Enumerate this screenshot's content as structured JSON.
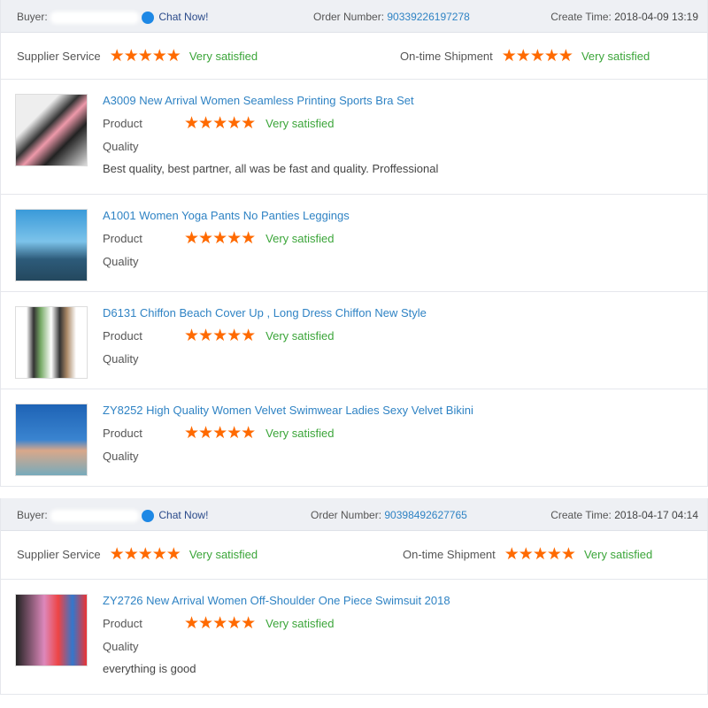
{
  "labels": {
    "buyer": "Buyer:",
    "chat": "Chat Now!",
    "order_number": "Order Number:",
    "create_time": "Create Time:",
    "supplier_service": "Supplier Service",
    "ontime": "On-time Shipment",
    "product": "Product",
    "quality": "Quality",
    "stars": "★★★★★"
  },
  "colors": {
    "star": "#ff6a00",
    "satisfied": "#3ba539",
    "link": "#2f83c4"
  },
  "orders": [
    {
      "order_number": "90339226197278",
      "create_time": "2018-04-09 13:19",
      "supplier_rating": "Very satisfied",
      "shipment_rating": "Very satisfied",
      "star_count": 5,
      "items": [
        {
          "title": "A3009 New Arrival Women Seamless Printing Sports Bra Set",
          "rating": "Very satisfied",
          "comment": "Best quality, best partner, all was be fast and quality. Proffessional"
        },
        {
          "title": "A1001 Women Yoga Pants No Panties Leggings",
          "rating": "Very satisfied",
          "comment": ""
        },
        {
          "title": "D6131 Chiffon Beach Cover Up , Long Dress Chiffon New Style",
          "rating": "Very satisfied",
          "comment": ""
        },
        {
          "title": "ZY8252 High Quality Women Velvet Swimwear Ladies Sexy Velvet Bikini",
          "rating": "Very satisfied",
          "comment": ""
        }
      ]
    },
    {
      "order_number": "90398492627765",
      "create_time": "2018-04-17 04:14",
      "supplier_rating": "Very satisfied",
      "shipment_rating": "Very satisfied",
      "star_count": 5,
      "items": [
        {
          "title": "ZY2726 New Arrival Women Off-Shoulder One Piece Swimsuit 2018",
          "rating": "Very satisfied",
          "comment": "everything is good"
        }
      ]
    }
  ]
}
